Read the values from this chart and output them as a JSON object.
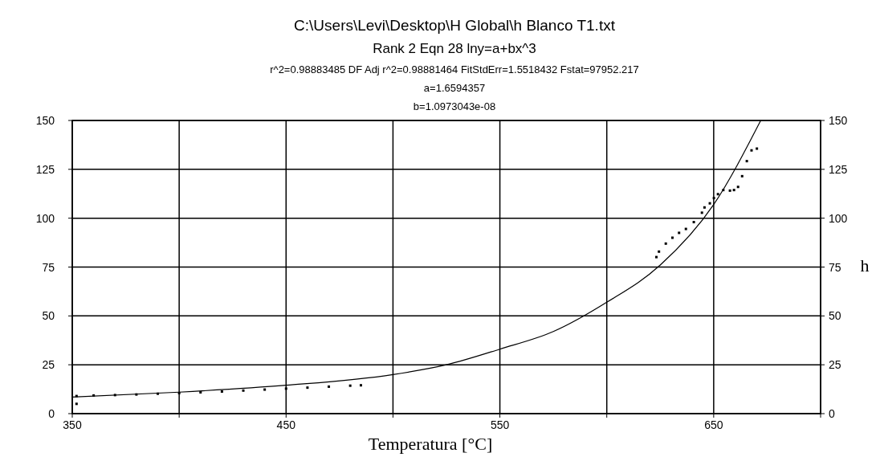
{
  "chart_data": {
    "type": "scatter",
    "title": "C:\\Users\\Levi\\Desktop\\H Global\\h Blanco T1.txt",
    "subtitle": "Rank 2  Eqn 28  lny=a+bx^3",
    "annotations": [
      "r^2=0.98883485  DF Adj r^2=0.98881464  FitStdErr=1.5518432  Fstat=97952.217",
      "a=1.6594357",
      "b=1.0973043e-08"
    ],
    "xlabel": "Temperatura [°C]",
    "y2label": "h",
    "xlim": [
      350,
      700
    ],
    "xticks": [
      350,
      {
        "value": 400,
        "label": null
      },
      450,
      {
        "value": 500,
        "label": null
      },
      550,
      {
        "value": 600,
        "label": null
      },
      650,
      {
        "value": 700,
        "label": null
      }
    ],
    "ylim": [
      0,
      150
    ],
    "yticks": [
      0,
      25,
      50,
      75,
      100,
      125,
      150
    ],
    "y2lim": [
      0,
      150
    ],
    "y2ticks": [
      0,
      25,
      50,
      75,
      100,
      125,
      150
    ],
    "grid": true,
    "series": [
      {
        "marker": "square",
        "color": "#000000",
        "x": [
          352,
          352,
          360,
          370,
          380,
          390,
          400,
          410,
          420,
          430,
          440,
          450,
          460,
          470,
          480,
          485,
          623.2,
          624.4,
          627.6,
          630.7,
          633.8,
          637.0,
          640.7,
          644.5,
          645.7,
          648.2,
          650.1,
          652.0,
          654.5,
          657.6,
          659.5,
          661.4,
          663.3,
          665.5,
          667.7,
          670.2
        ],
        "values": [
          5,
          9,
          9.3,
          9.5,
          9.8,
          10.2,
          10.5,
          10.9,
          11.3,
          11.8,
          12.3,
          12.8,
          13.3,
          13.8,
          14.3,
          14.5,
          80.1,
          82.9,
          87.0,
          90.0,
          92.5,
          94.5,
          98.0,
          102.8,
          105.5,
          107.6,
          110.3,
          112.3,
          114.4,
          114.1,
          114.4,
          116.0,
          121.5,
          129.2,
          134.7,
          135.6
        ]
      },
      {
        "type": "line",
        "marker": "none",
        "color": "#000000",
        "x": [
          350,
          400,
          450,
          500,
          525,
          550,
          575,
          600,
          625,
          650,
          672
        ],
        "values": [
          8.5,
          11,
          14.5,
          20,
          25,
          33,
          42,
          57,
          76,
          107,
          150
        ]
      }
    ]
  }
}
